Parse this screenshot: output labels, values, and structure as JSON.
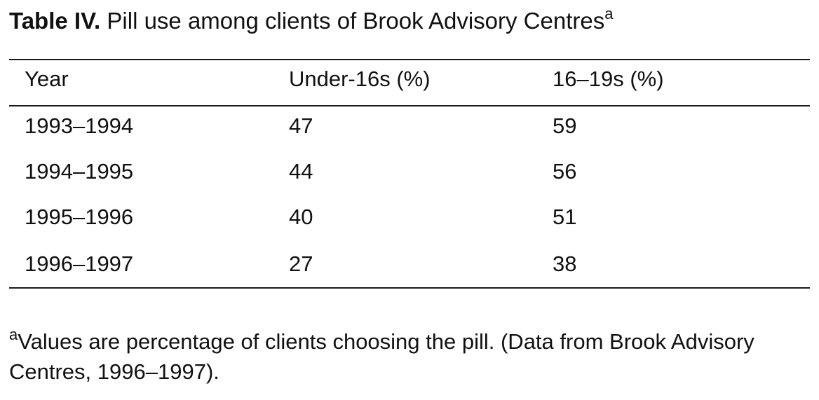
{
  "caption": {
    "label": "Table IV.",
    "text": " Pill use among clients of Brook Advisory Centres",
    "marker": "a"
  },
  "chart_data": {
    "type": "table",
    "columns": [
      "Year",
      "Under-16s (%)",
      "16–19s (%)"
    ],
    "rows": [
      [
        "1993–1994",
        "47",
        "59"
      ],
      [
        "1994–1995",
        "44",
        "56"
      ],
      [
        "1995–1996",
        "40",
        "51"
      ],
      [
        "1996–1997",
        "27",
        "38"
      ]
    ]
  },
  "footnote": {
    "marker": "a",
    "text": "Values are percentage of clients choosing the pill. (Data from Brook Advisory Centres, 1996–1997)."
  }
}
